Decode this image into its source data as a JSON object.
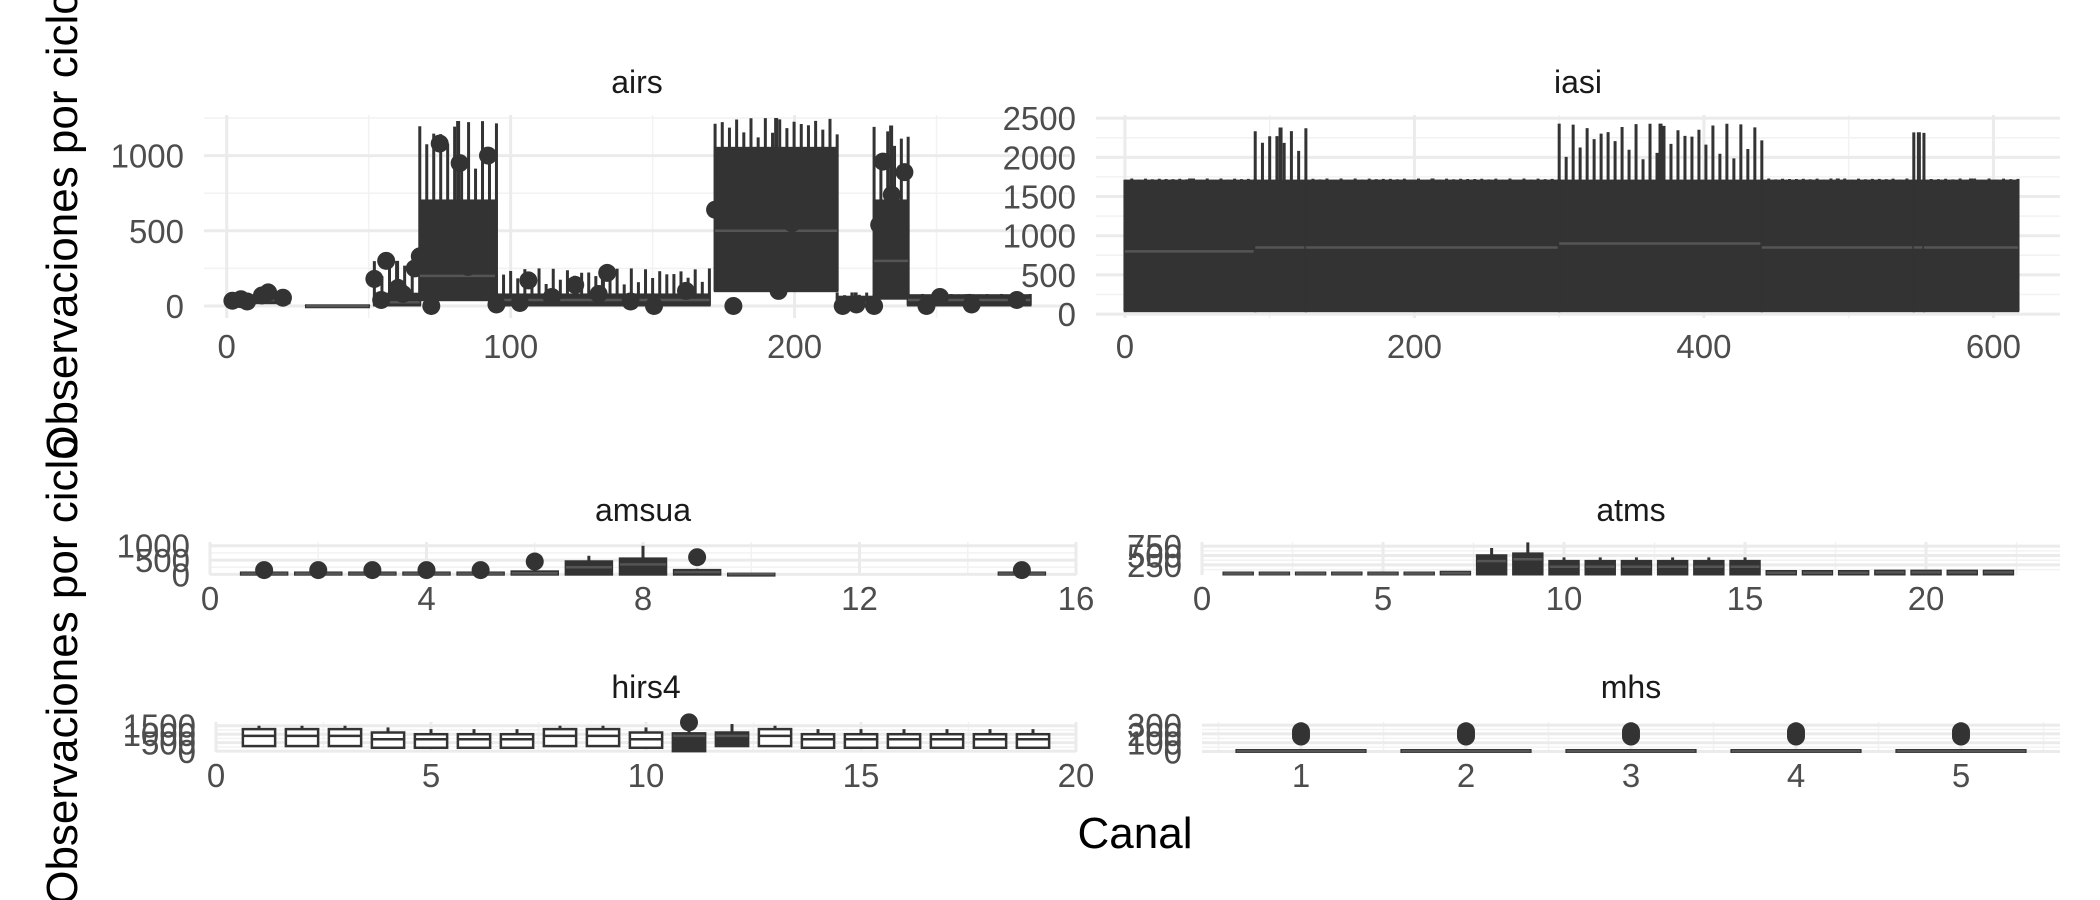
{
  "colors": {
    "grid_major": "#ebebeb",
    "grid_minor": "#f2f2f2",
    "ink": "#333333",
    "background": "#ffffff"
  },
  "y_label": "Observaciones por ciclo",
  "x_label": "Canal",
  "chart_data": [
    {
      "panel": "airs",
      "type": "boxplot",
      "title": "airs",
      "xlim": [
        -8,
        297
      ],
      "ylim": [
        -80,
        1270
      ],
      "x_ticks": [
        0,
        100,
        200
      ],
      "y_ticks": [
        0,
        500,
        1000
      ],
      "grid": true,
      "groups": [
        {
          "x": [
            2,
            22
          ],
          "median": 40,
          "q1": 20,
          "q3": 65,
          "whisker_high": 80,
          "outliers": [
            45,
            70,
            55,
            30,
            90,
            35
          ]
        },
        {
          "x": [
            28,
            50
          ],
          "median": 0,
          "q1": 0,
          "q3": 3,
          "whisker_high": 5,
          "outliers": []
        },
        {
          "x": [
            52,
            68
          ],
          "median": 25,
          "q1": 5,
          "q3": 80,
          "whisker_high": 300,
          "outliers": [
            40,
            120,
            250,
            300,
            80,
            180
          ]
        },
        {
          "x": [
            68,
            95
          ],
          "median": 200,
          "q1": 40,
          "q3": 700,
          "whisker_high": 1230,
          "outliers": [
            0,
            950,
            1000,
            1080,
            260,
            330,
            300
          ]
        },
        {
          "x": [
            95,
            170
          ],
          "median": 40,
          "q1": 5,
          "q3": 75,
          "whisker_high": 250,
          "outliers": [
            170,
            220,
            100,
            60,
            30,
            10,
            140,
            0,
            20,
            80
          ]
        },
        {
          "x": [
            172,
            215
          ],
          "median": 500,
          "q1": 100,
          "q3": 1050,
          "whisker_high": 1250,
          "outliers": [
            0,
            100,
            200,
            350,
            550,
            640,
            900,
            990,
            800,
            700,
            430
          ]
        },
        {
          "x": [
            215,
            228
          ],
          "median": 20,
          "q1": 0,
          "q3": 60,
          "whisker_high": 90,
          "outliers": [
            0,
            10
          ]
        },
        {
          "x": [
            228,
            240
          ],
          "median": 300,
          "q1": 50,
          "q3": 700,
          "whisker_high": 1200,
          "outliers": [
            540,
            740,
            890,
            960,
            580,
            0
          ]
        },
        {
          "x": [
            240,
            283
          ],
          "median": 40,
          "q1": 5,
          "q3": 70,
          "whisker_high": 80,
          "outliers": [
            0,
            10,
            40,
            60
          ]
        }
      ]
    },
    {
      "panel": "iasi",
      "type": "boxplot",
      "title": "iasi",
      "xlim": [
        -20,
        646
      ],
      "ylim": [
        -50,
        2540
      ],
      "x_ticks": [
        0,
        200,
        400,
        600
      ],
      "y_ticks": [
        0,
        500,
        1000,
        1500,
        2000,
        2500
      ],
      "grid": true,
      "groups": [
        {
          "x": [
            0,
            90
          ],
          "median": 800,
          "q1": 40,
          "q3": 1700,
          "whisker_high": 1730,
          "outliers": []
        },
        {
          "x": [
            90,
            125
          ],
          "median": 850,
          "q1": 40,
          "q3": 1700,
          "whisker_high": 2380,
          "outliers": []
        },
        {
          "x": [
            125,
            300
          ],
          "median": 850,
          "q1": 40,
          "q3": 1700,
          "whisker_high": 1730,
          "outliers": []
        },
        {
          "x": [
            300,
            440
          ],
          "median": 900,
          "q1": 40,
          "q3": 1700,
          "whisker_high": 2430,
          "outliers": []
        },
        {
          "x": [
            440,
            545
          ],
          "median": 850,
          "q1": 40,
          "q3": 1700,
          "whisker_high": 1730,
          "outliers": []
        },
        {
          "x": [
            545,
            552
          ],
          "median": 850,
          "q1": 40,
          "q3": 1700,
          "whisker_high": 2320,
          "outliers": []
        },
        {
          "x": [
            552,
            617
          ],
          "median": 850,
          "q1": 40,
          "q3": 1700,
          "whisker_high": 1730,
          "outliers": []
        }
      ]
    },
    {
      "panel": "amsua",
      "type": "boxplot",
      "title": "amsua",
      "xlim": [
        0,
        16
      ],
      "ylim": [
        -20,
        1130
      ],
      "x_ticks": [
        0,
        4,
        8,
        12,
        16
      ],
      "y_ticks": [
        0,
        500,
        1000
      ],
      "grid": true,
      "groups": [
        {
          "x": 1,
          "q1": 0,
          "median": 30,
          "q3": 60,
          "whisker_high": 100,
          "outliers": [
            150
          ]
        },
        {
          "x": 2,
          "q1": 0,
          "median": 30,
          "q3": 60,
          "whisker_high": 100,
          "outliers": [
            150
          ]
        },
        {
          "x": 3,
          "q1": 0,
          "median": 30,
          "q3": 60,
          "whisker_high": 100,
          "outliers": [
            150
          ]
        },
        {
          "x": 4,
          "q1": 0,
          "median": 30,
          "q3": 60,
          "whisker_high": 100,
          "outliers": [
            150
          ]
        },
        {
          "x": 5,
          "q1": 0,
          "median": 30,
          "q3": 60,
          "whisker_high": 100,
          "outliers": [
            150
          ]
        },
        {
          "x": 6,
          "q1": 0,
          "median": 40,
          "q3": 100,
          "whisker_high": 150,
          "outliers": [
            450
          ]
        },
        {
          "x": 7,
          "q1": 0,
          "median": 250,
          "q3": 450,
          "whisker_high": 650,
          "outliers": []
        },
        {
          "x": 8,
          "q1": 0,
          "median": 350,
          "q3": 550,
          "whisker_high": 1000,
          "outliers": []
        },
        {
          "x": 9,
          "q1": 0,
          "median": 80,
          "q3": 150,
          "whisker_high": 200,
          "outliers": [
            600
          ]
        },
        {
          "x": 10,
          "q1": 0,
          "median": 10,
          "q3": 20,
          "whisker_high": 30,
          "outliers": []
        },
        {
          "x": 15,
          "q1": 0,
          "median": 30,
          "q3": 60,
          "whisker_high": 100,
          "outliers": [
            150
          ]
        }
      ]
    },
    {
      "panel": "atms",
      "type": "boxplot",
      "title": "atms",
      "xlim": [
        0,
        23.7
      ],
      "ylim": [
        -20,
        860
      ],
      "x_ticks": [
        0,
        5,
        10,
        15,
        20
      ],
      "y_ticks": [
        250,
        500,
        750
      ],
      "grid": true,
      "groups": [
        {
          "x": 1,
          "q1": 0,
          "median": 20,
          "q3": 40,
          "whisker_high": 60,
          "outliers": []
        },
        {
          "x": 2,
          "q1": 0,
          "median": 20,
          "q3": 40,
          "whisker_high": 60,
          "outliers": []
        },
        {
          "x": 3,
          "q1": 0,
          "median": 20,
          "q3": 40,
          "whisker_high": 60,
          "outliers": []
        },
        {
          "x": 4,
          "q1": 0,
          "median": 20,
          "q3": 40,
          "whisker_high": 60,
          "outliers": []
        },
        {
          "x": 5,
          "q1": 0,
          "median": 20,
          "q3": 40,
          "whisker_high": 60,
          "outliers": []
        },
        {
          "x": 6,
          "q1": 0,
          "median": 20,
          "q3": 40,
          "whisker_high": 60,
          "outliers": []
        },
        {
          "x": 7,
          "q1": 0,
          "median": 30,
          "q3": 60,
          "whisker_high": 80,
          "outliers": []
        },
        {
          "x": 8,
          "q1": 0,
          "median": 350,
          "q3": 500,
          "whisker_high": 700,
          "outliers": []
        },
        {
          "x": 9,
          "q1": 0,
          "median": 400,
          "q3": 550,
          "whisker_high": 850,
          "outliers": []
        },
        {
          "x": 10,
          "q1": 0,
          "median": 200,
          "q3": 350,
          "whisker_high": 450,
          "outliers": []
        },
        {
          "x": 11,
          "q1": 0,
          "median": 200,
          "q3": 350,
          "whisker_high": 450,
          "outliers": []
        },
        {
          "x": 12,
          "q1": 0,
          "median": 200,
          "q3": 350,
          "whisker_high": 450,
          "outliers": []
        },
        {
          "x": 13,
          "q1": 0,
          "median": 200,
          "q3": 350,
          "whisker_high": 450,
          "outliers": []
        },
        {
          "x": 14,
          "q1": 0,
          "median": 200,
          "q3": 350,
          "whisker_high": 450,
          "outliers": []
        },
        {
          "x": 15,
          "q1": 0,
          "median": 200,
          "q3": 350,
          "whisker_high": 450,
          "outliers": []
        },
        {
          "x": 16,
          "q1": 0,
          "median": 40,
          "q3": 80,
          "whisker_high": 100,
          "outliers": []
        },
        {
          "x": 17,
          "q1": 0,
          "median": 40,
          "q3": 80,
          "whisker_high": 100,
          "outliers": []
        },
        {
          "x": 18,
          "q1": 0,
          "median": 40,
          "q3": 80,
          "whisker_high": 100,
          "outliers": []
        },
        {
          "x": 19,
          "q1": 0,
          "median": 50,
          "q3": 90,
          "whisker_high": 110,
          "outliers": []
        },
        {
          "x": 20,
          "q1": 0,
          "median": 50,
          "q3": 90,
          "whisker_high": 110,
          "outliers": []
        },
        {
          "x": 21,
          "q1": 0,
          "median": 50,
          "q3": 90,
          "whisker_high": 110,
          "outliers": []
        },
        {
          "x": 22,
          "q1": 0,
          "median": 50,
          "q3": 90,
          "whisker_high": 110,
          "outliers": []
        }
      ]
    },
    {
      "panel": "hirs4",
      "type": "boxplot",
      "title": "hirs4",
      "xlim": [
        0,
        20
      ],
      "ylim": [
        -50,
        1720
      ],
      "x_ticks": [
        0,
        5,
        10,
        15,
        20
      ],
      "y_ticks": [
        0,
        500,
        1000,
        1500
      ],
      "grid": true,
      "groups": [
        {
          "x": 1,
          "q1": 300,
          "median": 900,
          "q3": 1300,
          "whisker_high": 1500,
          "outliers": []
        },
        {
          "x": 2,
          "q1": 300,
          "median": 900,
          "q3": 1300,
          "whisker_high": 1500,
          "outliers": []
        },
        {
          "x": 3,
          "q1": 300,
          "median": 900,
          "q3": 1300,
          "whisker_high": 1500,
          "outliers": []
        },
        {
          "x": 4,
          "q1": 200,
          "median": 700,
          "q3": 1100,
          "whisker_high": 1400,
          "outliers": []
        },
        {
          "x": 5,
          "q1": 200,
          "median": 700,
          "q3": 1000,
          "whisker_high": 1300,
          "outliers": []
        },
        {
          "x": 6,
          "q1": 200,
          "median": 700,
          "q3": 1000,
          "whisker_high": 1300,
          "outliers": []
        },
        {
          "x": 7,
          "q1": 200,
          "median": 700,
          "q3": 1000,
          "whisker_high": 1300,
          "outliers": []
        },
        {
          "x": 8,
          "q1": 300,
          "median": 900,
          "q3": 1300,
          "whisker_high": 1500,
          "outliers": []
        },
        {
          "x": 9,
          "q1": 300,
          "median": 900,
          "q3": 1300,
          "whisker_high": 1500,
          "outliers": []
        },
        {
          "x": 10,
          "q1": 200,
          "median": 700,
          "q3": 1100,
          "whisker_high": 1400,
          "outliers": []
        },
        {
          "x": 11,
          "q1": 0,
          "median": 900,
          "q3": 1050,
          "whisker_high": 1300,
          "outliers": [
            1700
          ]
        },
        {
          "x": 12,
          "q1": 300,
          "median": 900,
          "q3": 1100,
          "whisker_high": 1600,
          "outliers": []
        },
        {
          "x": 13,
          "q1": 300,
          "median": 900,
          "q3": 1300,
          "whisker_high": 1500,
          "outliers": []
        },
        {
          "x": 14,
          "q1": 200,
          "median": 700,
          "q3": 1000,
          "whisker_high": 1300,
          "outliers": []
        },
        {
          "x": 15,
          "q1": 200,
          "median": 700,
          "q3": 1000,
          "whisker_high": 1300,
          "outliers": []
        },
        {
          "x": 16,
          "q1": 200,
          "median": 700,
          "q3": 1000,
          "whisker_high": 1300,
          "outliers": []
        },
        {
          "x": 17,
          "q1": 200,
          "median": 700,
          "q3": 1000,
          "whisker_high": 1300,
          "outliers": []
        },
        {
          "x": 18,
          "q1": 200,
          "median": 700,
          "q3": 1000,
          "whisker_high": 1300,
          "outliers": []
        },
        {
          "x": 19,
          "q1": 200,
          "median": 700,
          "q3": 1000,
          "whisker_high": 1300,
          "outliers": []
        }
      ]
    },
    {
      "panel": "mhs",
      "type": "boxplot",
      "title": "mhs",
      "xlim": [
        0.4,
        5.6
      ],
      "ylim": [
        -5,
        335
      ],
      "x_ticks": [
        1,
        2,
        3,
        4,
        5
      ],
      "y_ticks": [
        0,
        100,
        200,
        300
      ],
      "grid": true,
      "groups": [
        {
          "x": 1,
          "q1": 0,
          "median": 5,
          "q3": 15,
          "whisker_high": 25,
          "outliers": [
            170,
            200,
            230
          ]
        },
        {
          "x": 2,
          "q1": 0,
          "median": 5,
          "q3": 15,
          "whisker_high": 25,
          "outliers": [
            170,
            200,
            230
          ]
        },
        {
          "x": 3,
          "q1": 0,
          "median": 5,
          "q3": 15,
          "whisker_high": 25,
          "outliers": [
            170,
            200,
            230
          ]
        },
        {
          "x": 4,
          "q1": 0,
          "median": 5,
          "q3": 15,
          "whisker_high": 25,
          "outliers": [
            170,
            200,
            230
          ]
        },
        {
          "x": 5,
          "q1": 0,
          "median": 5,
          "q3": 15,
          "whisker_high": 25,
          "outliers": [
            170,
            200,
            230
          ]
        }
      ]
    }
  ]
}
